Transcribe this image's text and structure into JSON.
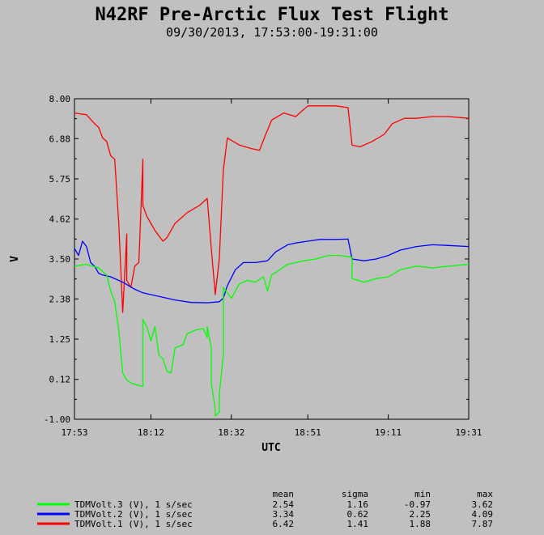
{
  "chart_data": {
    "type": "line",
    "title": "N42RF Pre-Arctic Flux Test Flight",
    "subtitle": "09/30/2013, 17:53:00-19:31:00",
    "xlabel": "UTC",
    "ylabel": "V",
    "xlim": [
      "17:53",
      "19:31"
    ],
    "ylim": [
      -1.0,
      8.0
    ],
    "x_ticks": [
      "17:53",
      "18:12",
      "18:32",
      "18:51",
      "19:11",
      "19:31"
    ],
    "y_ticks": [
      "-1.00",
      "0.12",
      "1.25",
      "2.38",
      "3.50",
      "4.62",
      "5.75",
      "6.88",
      "8.00"
    ],
    "grid": false,
    "legend_position": "bottom-left",
    "stats_headers": [
      "mean",
      "sigma",
      "min",
      "max"
    ],
    "series": [
      {
        "name": "TDMVolt.3 (V), 1 s/sec",
        "color": "#00ff00",
        "stats": [
          "2.54",
          "1.16",
          "-0.97",
          "3.62"
        ],
        "points": [
          [
            "17:53",
            3.3
          ],
          [
            "17:56",
            3.35
          ],
          [
            "17:59",
            3.25
          ],
          [
            "18:01",
            3.05
          ],
          [
            "18:02",
            2.6
          ],
          [
            "18:03",
            2.3
          ],
          [
            "18:04",
            1.5
          ],
          [
            "18:05",
            0.3
          ],
          [
            "18:06",
            0.1
          ],
          [
            "18:07",
            0.02
          ],
          [
            "18:09",
            -0.05
          ],
          [
            "18:10",
            -0.08
          ],
          [
            "18:10",
            1.8
          ],
          [
            "18:11",
            1.6
          ],
          [
            "18:12",
            1.2
          ],
          [
            "18:13",
            1.6
          ],
          [
            "18:14",
            0.8
          ],
          [
            "18:15",
            0.7
          ],
          [
            "18:16",
            0.35
          ],
          [
            "18:17",
            0.3
          ],
          [
            "18:18",
            1.0
          ],
          [
            "18:20",
            1.1
          ],
          [
            "18:21",
            1.4
          ],
          [
            "18:23",
            1.5
          ],
          [
            "18:25",
            1.55
          ],
          [
            "18:26",
            1.3
          ],
          [
            "18:26",
            1.6
          ],
          [
            "18:27",
            1.0
          ],
          [
            "18:27",
            0.0
          ],
          [
            "18:28",
            -0.7
          ],
          [
            "18:28",
            -0.9
          ],
          [
            "18:29",
            -0.8
          ],
          [
            "18:29",
            -0.3
          ],
          [
            "18:30",
            0.8
          ],
          [
            "18:30",
            2.7
          ],
          [
            "18:32",
            2.4
          ],
          [
            "18:34",
            2.8
          ],
          [
            "18:36",
            2.9
          ],
          [
            "18:38",
            2.85
          ],
          [
            "18:40",
            3.0
          ],
          [
            "18:41",
            2.6
          ],
          [
            "18:42",
            3.05
          ],
          [
            "18:44",
            3.2
          ],
          [
            "18:46",
            3.35
          ],
          [
            "18:48",
            3.4
          ],
          [
            "18:50",
            3.45
          ],
          [
            "18:53",
            3.5
          ],
          [
            "18:56",
            3.6
          ],
          [
            "18:59",
            3.6
          ],
          [
            "19:02",
            3.55
          ],
          [
            "19:02",
            2.95
          ],
          [
            "19:05",
            2.85
          ],
          [
            "19:08",
            2.95
          ],
          [
            "19:11",
            3.0
          ],
          [
            "19:14",
            3.2
          ],
          [
            "19:18",
            3.3
          ],
          [
            "19:22",
            3.25
          ],
          [
            "19:26",
            3.3
          ],
          [
            "19:31",
            3.35
          ]
        ]
      },
      {
        "name": "TDMVolt.2 (V), 1 s/sec",
        "color": "#0000ff",
        "stats": [
          "3.34",
          "0.62",
          "2.25",
          "4.09"
        ],
        "points": [
          [
            "17:53",
            3.8
          ],
          [
            "17:54",
            3.6
          ],
          [
            "17:55",
            4.0
          ],
          [
            "17:56",
            3.85
          ],
          [
            "17:57",
            3.4
          ],
          [
            "17:58",
            3.3
          ],
          [
            "17:59",
            3.1
          ],
          [
            "18:00",
            3.05
          ],
          [
            "18:02",
            3.0
          ],
          [
            "18:05",
            2.85
          ],
          [
            "18:08",
            2.65
          ],
          [
            "18:10",
            2.55
          ],
          [
            "18:14",
            2.45
          ],
          [
            "18:18",
            2.35
          ],
          [
            "18:22",
            2.28
          ],
          [
            "18:26",
            2.27
          ],
          [
            "18:29",
            2.3
          ],
          [
            "18:30",
            2.4
          ],
          [
            "18:31",
            2.75
          ],
          [
            "18:33",
            3.2
          ],
          [
            "18:35",
            3.4
          ],
          [
            "18:38",
            3.4
          ],
          [
            "18:41",
            3.45
          ],
          [
            "18:43",
            3.7
          ],
          [
            "18:46",
            3.9
          ],
          [
            "18:48",
            3.95
          ],
          [
            "18:51",
            4.0
          ],
          [
            "18:54",
            4.05
          ],
          [
            "18:58",
            4.05
          ],
          [
            "19:01",
            4.06
          ],
          [
            "19:02",
            3.5
          ],
          [
            "19:05",
            3.45
          ],
          [
            "19:08",
            3.5
          ],
          [
            "19:11",
            3.6
          ],
          [
            "19:14",
            3.75
          ],
          [
            "19:18",
            3.85
          ],
          [
            "19:22",
            3.9
          ],
          [
            "19:26",
            3.88
          ],
          [
            "19:31",
            3.85
          ]
        ]
      },
      {
        "name": "TDMVolt.1 (V), 1 s/sec",
        "color": "#ff0000",
        "stats": [
          "6.42",
          "1.41",
          "1.88",
          "7.87"
        ],
        "points": [
          [
            "17:53",
            7.6
          ],
          [
            "17:56",
            7.55
          ],
          [
            "17:58",
            7.3
          ],
          [
            "17:59",
            7.2
          ],
          [
            "18:00",
            6.9
          ],
          [
            "18:01",
            6.8
          ],
          [
            "18:02",
            6.4
          ],
          [
            "18:03",
            6.3
          ],
          [
            "18:04",
            4.5
          ],
          [
            "18:05",
            2.0
          ],
          [
            "18:06",
            4.2
          ],
          [
            "18:06",
            2.9
          ],
          [
            "18:07",
            2.7
          ],
          [
            "18:08",
            3.3
          ],
          [
            "18:09",
            3.4
          ],
          [
            "18:10",
            6.3
          ],
          [
            "18:10",
            5.0
          ],
          [
            "18:11",
            4.7
          ],
          [
            "18:12",
            4.5
          ],
          [
            "18:13",
            4.3
          ],
          [
            "18:15",
            4.0
          ],
          [
            "18:16",
            4.1
          ],
          [
            "18:18",
            4.5
          ],
          [
            "18:21",
            4.8
          ],
          [
            "18:24",
            5.0
          ],
          [
            "18:26",
            5.2
          ],
          [
            "18:27",
            3.8
          ],
          [
            "18:28",
            2.5
          ],
          [
            "18:29",
            3.5
          ],
          [
            "18:30",
            6.0
          ],
          [
            "18:31",
            6.9
          ],
          [
            "18:34",
            6.7
          ],
          [
            "18:37",
            6.6
          ],
          [
            "18:39",
            6.55
          ],
          [
            "18:40",
            6.85
          ],
          [
            "18:42",
            7.4
          ],
          [
            "18:45",
            7.6
          ],
          [
            "18:48",
            7.5
          ],
          [
            "18:51",
            7.8
          ],
          [
            "18:54",
            7.8
          ],
          [
            "18:58",
            7.8
          ],
          [
            "19:01",
            7.75
          ],
          [
            "19:02",
            6.7
          ],
          [
            "19:04",
            6.65
          ],
          [
            "19:07",
            6.8
          ],
          [
            "19:10",
            7.0
          ],
          [
            "19:12",
            7.3
          ],
          [
            "19:15",
            7.45
          ],
          [
            "19:18",
            7.45
          ],
          [
            "19:22",
            7.5
          ],
          [
            "19:26",
            7.5
          ],
          [
            "19:31",
            7.45
          ]
        ]
      }
    ]
  }
}
